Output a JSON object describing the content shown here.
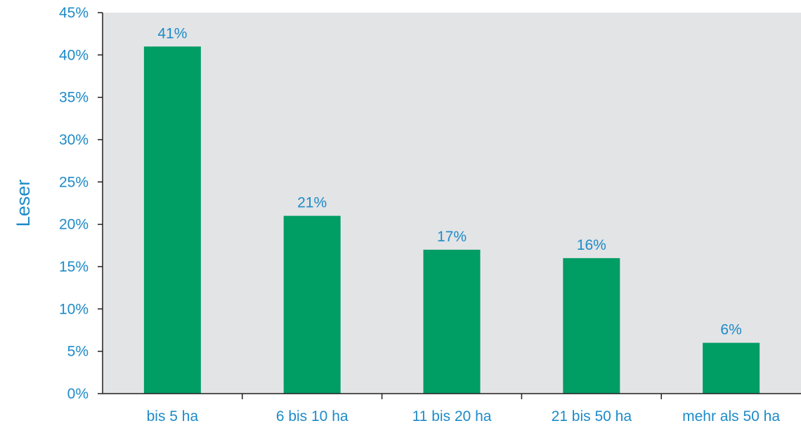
{
  "chart_data": {
    "type": "bar",
    "title": "",
    "xlabel": "",
    "ylabel": "Leser",
    "categories": [
      "bis 5 ha",
      "6 bis 10 ha",
      "11 bis 20 ha",
      "21 bis 50 ha",
      "mehr als 50 ha"
    ],
    "values": [
      41,
      21,
      17,
      16,
      6
    ],
    "data_labels": [
      "41%",
      "21%",
      "17%",
      "16%",
      "6%"
    ],
    "y_ticks": [
      0,
      5,
      10,
      15,
      20,
      25,
      30,
      35,
      40,
      45
    ],
    "y_tick_labels": [
      "0%",
      "5%",
      "10%",
      "15%",
      "20%",
      "25%",
      "30%",
      "35%",
      "40%",
      "45%"
    ],
    "ylim": [
      0,
      45
    ],
    "grid": false,
    "legend": "none"
  },
  "colors": {
    "bar": "#009D65",
    "plot_background": "#E3E4E6",
    "text": "#1D8BC8",
    "axis": "#231F20"
  }
}
